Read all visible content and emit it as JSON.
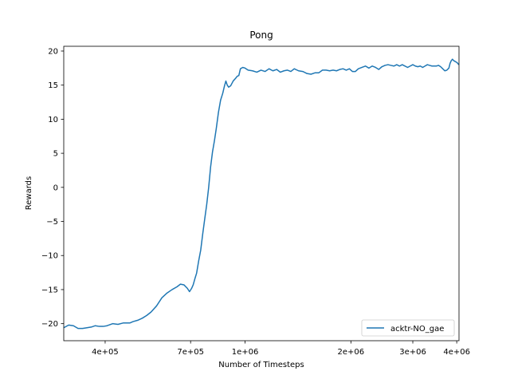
{
  "chart_data": {
    "type": "line",
    "title": "Pong",
    "xlabel": "Number of Timesteps",
    "ylabel": "Rewards",
    "x_scale": "log",
    "xlim": [
      305000,
      4060000
    ],
    "ylim": [
      -22.5,
      20.7
    ],
    "xticks": [
      {
        "value": 400000,
        "label": "4e+05"
      },
      {
        "value": 700000,
        "label": "7e+05"
      },
      {
        "value": 1000000,
        "label": "1e+06"
      },
      {
        "value": 2000000,
        "label": "2e+06"
      },
      {
        "value": 3000000,
        "label": "3e+06"
      },
      {
        "value": 4000000,
        "label": "4e+06"
      }
    ],
    "yticks": [
      {
        "value": 20,
        "label": "20"
      },
      {
        "value": 15,
        "label": "15"
      },
      {
        "value": 10,
        "label": "10"
      },
      {
        "value": 5,
        "label": "5"
      },
      {
        "value": 0,
        "label": "0"
      },
      {
        "value": -5,
        "label": "−5"
      },
      {
        "value": -10,
        "label": "−10"
      },
      {
        "value": -15,
        "label": "−15"
      },
      {
        "value": -20,
        "label": "−20"
      }
    ],
    "grid": false,
    "legend_position": "lower right",
    "colors": {
      "series": "#1f77b4"
    },
    "series": [
      {
        "name": "acktr-NO_gae",
        "points": [
          [
            305000,
            -20.6
          ],
          [
            315000,
            -20.2
          ],
          [
            325000,
            -20.3
          ],
          [
            335000,
            -20.7
          ],
          [
            345000,
            -20.7
          ],
          [
            355000,
            -20.6
          ],
          [
            365000,
            -20.5
          ],
          [
            375000,
            -20.3
          ],
          [
            385000,
            -20.4
          ],
          [
            395000,
            -20.4
          ],
          [
            405000,
            -20.3
          ],
          [
            420000,
            -20.0
          ],
          [
            435000,
            -20.1
          ],
          [
            450000,
            -19.9
          ],
          [
            470000,
            -19.9
          ],
          [
            480000,
            -19.7
          ],
          [
            495000,
            -19.5
          ],
          [
            510000,
            -19.2
          ],
          [
            525000,
            -18.8
          ],
          [
            540000,
            -18.3
          ],
          [
            560000,
            -17.4
          ],
          [
            580000,
            -16.2
          ],
          [
            600000,
            -15.5
          ],
          [
            620000,
            -15.0
          ],
          [
            640000,
            -14.6
          ],
          [
            655000,
            -14.2
          ],
          [
            670000,
            -14.3
          ],
          [
            685000,
            -14.8
          ],
          [
            695000,
            -15.3
          ],
          [
            705000,
            -14.8
          ],
          [
            712000,
            -14.3
          ],
          [
            720000,
            -13.4
          ],
          [
            728000,
            -12.6
          ],
          [
            738000,
            -10.8
          ],
          [
            748000,
            -9.2
          ],
          [
            758000,
            -6.8
          ],
          [
            768000,
            -4.6
          ],
          [
            778000,
            -2.5
          ],
          [
            788000,
            0.0
          ],
          [
            798000,
            3.0
          ],
          [
            808000,
            5.2
          ],
          [
            818000,
            6.8
          ],
          [
            828000,
            8.6
          ],
          [
            840000,
            11.0
          ],
          [
            852000,
            12.8
          ],
          [
            864000,
            13.8
          ],
          [
            874000,
            14.9
          ],
          [
            882000,
            15.6
          ],
          [
            890000,
            15.0
          ],
          [
            898000,
            14.7
          ],
          [
            910000,
            14.9
          ],
          [
            925000,
            15.6
          ],
          [
            940000,
            16.0
          ],
          [
            950000,
            16.3
          ],
          [
            960000,
            16.4
          ],
          [
            970000,
            17.4
          ],
          [
            985000,
            17.6
          ],
          [
            1000000,
            17.5
          ],
          [
            1020000,
            17.2
          ],
          [
            1050000,
            17.1
          ],
          [
            1080000,
            16.9
          ],
          [
            1110000,
            17.2
          ],
          [
            1140000,
            17.0
          ],
          [
            1170000,
            17.4
          ],
          [
            1200000,
            17.1
          ],
          [
            1230000,
            17.3
          ],
          [
            1260000,
            16.9
          ],
          [
            1290000,
            17.1
          ],
          [
            1320000,
            17.2
          ],
          [
            1350000,
            17.0
          ],
          [
            1380000,
            17.4
          ],
          [
            1420000,
            17.1
          ],
          [
            1460000,
            17.0
          ],
          [
            1500000,
            16.7
          ],
          [
            1540000,
            16.6
          ],
          [
            1580000,
            16.8
          ],
          [
            1620000,
            16.8
          ],
          [
            1660000,
            17.2
          ],
          [
            1700000,
            17.2
          ],
          [
            1740000,
            17.1
          ],
          [
            1780000,
            17.2
          ],
          [
            1820000,
            17.1
          ],
          [
            1860000,
            17.3
          ],
          [
            1900000,
            17.4
          ],
          [
            1940000,
            17.2
          ],
          [
            1980000,
            17.4
          ],
          [
            2020000,
            17.0
          ],
          [
            2060000,
            17.0
          ],
          [
            2100000,
            17.4
          ],
          [
            2150000,
            17.6
          ],
          [
            2200000,
            17.8
          ],
          [
            2250000,
            17.5
          ],
          [
            2300000,
            17.8
          ],
          [
            2350000,
            17.6
          ],
          [
            2400000,
            17.3
          ],
          [
            2450000,
            17.7
          ],
          [
            2500000,
            17.9
          ],
          [
            2550000,
            18.0
          ],
          [
            2600000,
            17.9
          ],
          [
            2650000,
            17.8
          ],
          [
            2700000,
            18.0
          ],
          [
            2750000,
            17.8
          ],
          [
            2800000,
            18.0
          ],
          [
            2850000,
            17.8
          ],
          [
            2900000,
            17.6
          ],
          [
            2950000,
            17.8
          ],
          [
            3000000,
            18.0
          ],
          [
            3050000,
            17.8
          ],
          [
            3100000,
            17.7
          ],
          [
            3150000,
            17.8
          ],
          [
            3200000,
            17.6
          ],
          [
            3250000,
            17.8
          ],
          [
            3300000,
            18.0
          ],
          [
            3350000,
            17.9
          ],
          [
            3400000,
            17.8
          ],
          [
            3450000,
            17.8
          ],
          [
            3500000,
            17.8
          ],
          [
            3550000,
            17.9
          ],
          [
            3600000,
            17.7
          ],
          [
            3650000,
            17.4
          ],
          [
            3700000,
            17.1
          ],
          [
            3750000,
            17.2
          ],
          [
            3800000,
            17.5
          ],
          [
            3830000,
            18.2
          ],
          [
            3860000,
            18.6
          ],
          [
            3890000,
            18.8
          ],
          [
            3920000,
            18.6
          ],
          [
            3950000,
            18.5
          ],
          [
            3980000,
            18.4
          ],
          [
            4010000,
            18.3
          ],
          [
            4040000,
            18.1
          ],
          [
            4060000,
            18.0
          ]
        ]
      }
    ]
  }
}
